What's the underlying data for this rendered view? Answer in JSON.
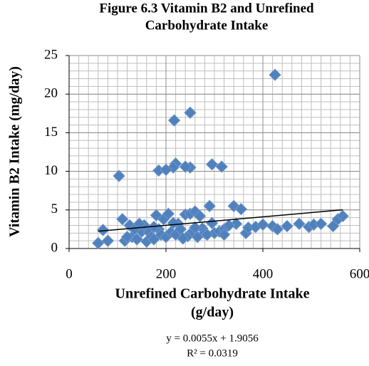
{
  "chart_data": {
    "type": "scatter",
    "title": [
      "Figure 6.3 Vitamin B2 and Unrefined",
      "Carbohydrate Intake"
    ],
    "x_label": [
      "Unrefined Carbohydrate Intake",
      "(g/day)"
    ],
    "y_label": "Vitamin B2 Intake (mg/day)",
    "xlim": [
      0,
      600
    ],
    "xticks": [
      0,
      200,
      400,
      600
    ],
    "ylim": [
      0,
      25
    ],
    "yticks": [
      0,
      5,
      10,
      15,
      20,
      25
    ],
    "grid": true,
    "minor_grid": {
      "x": 20,
      "y": 1
    },
    "color": "#4f81bd",
    "x": [
      425,
      250,
      217,
      220,
      250,
      215,
      185,
      200,
      240,
      295,
      315,
      103,
      60,
      70,
      80,
      110,
      115,
      125,
      130,
      140,
      150,
      155,
      160,
      165,
      170,
      175,
      180,
      185,
      190,
      195,
      200,
      205,
      210,
      220,
      225,
      230,
      240,
      245,
      250,
      255,
      260,
      265,
      270,
      275,
      280,
      290,
      295,
      300,
      310,
      320,
      340,
      345,
      355,
      365,
      370,
      385,
      400,
      420,
      430,
      450,
      475,
      495,
      505,
      520,
      545,
      555,
      565,
      135,
      145,
      120,
      175,
      235,
      260,
      285,
      320,
      330,
      215
    ],
    "values": [
      22.5,
      17.6,
      16.6,
      11,
      10.5,
      10.5,
      10.1,
      10.2,
      10.6,
      10.9,
      10.6,
      9.4,
      0.7,
      2.4,
      1,
      3.8,
      1,
      3,
      1.5,
      1.2,
      2.2,
      3,
      0.9,
      2.1,
      1.5,
      1.2,
      4.3,
      2.5,
      1.8,
      3.8,
      1.5,
      4.5,
      2.1,
      1.8,
      3.2,
      2.5,
      4.4,
      1.6,
      4.5,
      2.2,
      4.8,
      1.5,
      4.2,
      2.6,
      2,
      5.5,
      3.3,
      2,
      2.2,
      2.5,
      5.5,
      3.2,
      5.1,
      2,
      2.7,
      2.8,
      3.1,
      2.9,
      2.5,
      2.9,
      3.2,
      2.8,
      3.1,
      3.2,
      2.9,
      3.8,
      4.2,
      2.5,
      3.2,
      1.5,
      2.8,
      1.3,
      2.7,
      1.8,
      1.8,
      3,
      3.3
    ],
    "trendline": {
      "slope": 0.0055,
      "intercept": 1.9056,
      "equation": "y = 0.0055x + 1.9056",
      "r2": "R² = 0.0319"
    }
  }
}
